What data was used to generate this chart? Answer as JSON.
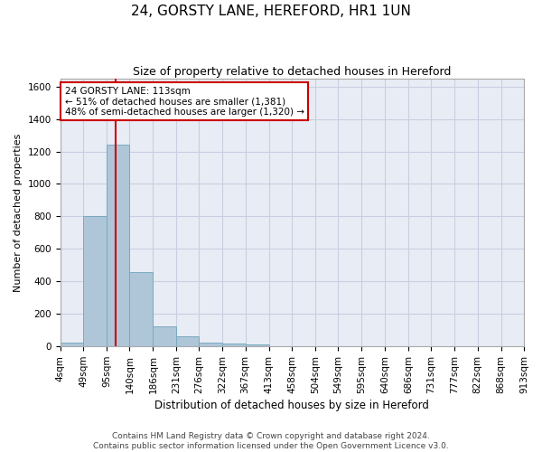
{
  "title": "24, GORSTY LANE, HEREFORD, HR1 1UN",
  "subtitle": "Size of property relative to detached houses in Hereford",
  "xlabel": "Distribution of detached houses by size in Hereford",
  "ylabel": "Number of detached properties",
  "footer_line1": "Contains HM Land Registry data © Crown copyright and database right 2024.",
  "footer_line2": "Contains public sector information licensed under the Open Government Licence v3.0.",
  "bar_color": "#aec6d8",
  "bar_edge_color": "#7aaabf",
  "grid_color": "#c8cfe0",
  "background_color": "#e8ecf5",
  "annotation_box_color": "#cc0000",
  "property_line_color": "#cc0000",
  "property_sqm": 113,
  "annotation_line1": "24 GORSTY LANE: 113sqm",
  "annotation_line2": "← 51% of detached houses are smaller (1,381)",
  "annotation_line3": "48% of semi-detached houses are larger (1,320) →",
  "bins": [
    4,
    49,
    95,
    140,
    186,
    231,
    276,
    322,
    367,
    413,
    458,
    504,
    549,
    595,
    640,
    686,
    731,
    777,
    822,
    868,
    913
  ],
  "bin_labels": [
    "4sqm",
    "49sqm",
    "95sqm",
    "140sqm",
    "186sqm",
    "231sqm",
    "276sqm",
    "322sqm",
    "367sqm",
    "413sqm",
    "458sqm",
    "504sqm",
    "549sqm",
    "595sqm",
    "640sqm",
    "686sqm",
    "731sqm",
    "777sqm",
    "822sqm",
    "868sqm",
    "913sqm"
  ],
  "counts": [
    25,
    800,
    1240,
    455,
    125,
    60,
    25,
    18,
    15,
    0,
    0,
    0,
    0,
    0,
    0,
    0,
    0,
    0,
    0,
    0
  ],
  "ylim": [
    0,
    1650
  ],
  "yticks": [
    0,
    200,
    400,
    600,
    800,
    1000,
    1200,
    1400,
    1600
  ],
  "title_fontsize": 11,
  "subtitle_fontsize": 9,
  "ylabel_fontsize": 8,
  "xlabel_fontsize": 8.5,
  "tick_fontsize": 7.5,
  "footer_fontsize": 6.5,
  "annotation_fontsize": 7.5
}
